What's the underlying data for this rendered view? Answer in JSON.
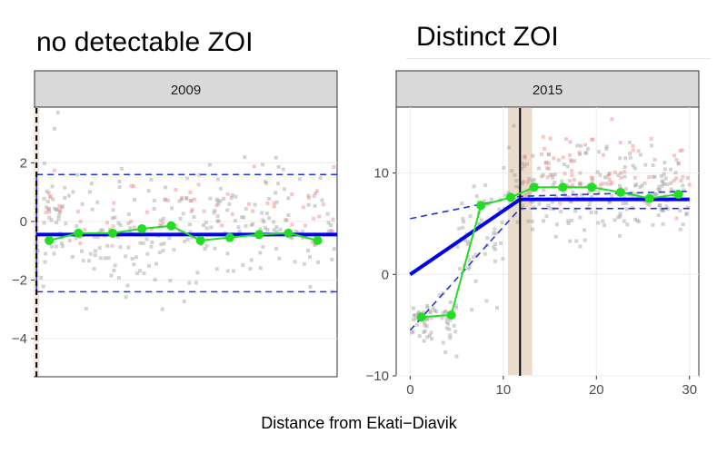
{
  "headings": {
    "left": "no detectable ZOI",
    "right": "Distinct ZOI"
  },
  "chart_data": [
    {
      "type": "scatter",
      "title": "2009",
      "xlabel": "",
      "ylabel": "",
      "xlim": [
        0,
        31
      ],
      "ylim": [
        -5.3,
        3.9
      ],
      "yticks": [
        2,
        0,
        -2,
        -4
      ],
      "xticks": [],
      "breakpoint_x": 0.2,
      "fit_line": {
        "x": [
          0.2,
          31
        ],
        "y": [
          -0.45,
          -0.45
        ]
      },
      "ci_upper": [
        [
          0.2,
          1.6
        ],
        [
          31,
          1.6
        ]
      ],
      "ci_lower": [
        [
          0.2,
          -2.4
        ],
        [
          31,
          -2.4
        ]
      ],
      "ci_edge": {
        "x": 0.2,
        "y": [
          -2.4,
          1.6
        ]
      },
      "binned_means": {
        "x": [
          1.5,
          4.5,
          8,
          11,
          14,
          17,
          20,
          23,
          26,
          29
        ],
        "y": [
          -0.65,
          -0.4,
          -0.4,
          -0.25,
          -0.15,
          -0.65,
          -0.55,
          -0.45,
          -0.4,
          -0.65
        ]
      },
      "scatter_grey": {
        "mean": -0.2,
        "sd": 1.1,
        "n": 260,
        "seed": 11
      },
      "scatter_red": {
        "mean": 0.5,
        "sd": 0.6,
        "n": 70,
        "seed": 23
      },
      "colors": {
        "fit": "#0000ee",
        "ci": "#2233dd",
        "means": "#22dd22",
        "grey": "#9e9e9e",
        "red": "#f08080",
        "break": "#000000"
      }
    },
    {
      "type": "scatter",
      "title": "2015",
      "xlabel": "Distance from Ekati−Diavik",
      "ylabel": "",
      "xlim": [
        -1.5,
        31
      ],
      "ylim": [
        -10,
        16.5
      ],
      "yticks": [
        10,
        0,
        -10
      ],
      "xticks": [
        0,
        10,
        20,
        30
      ],
      "breakpoint_x": 11.8,
      "breakpoint_band": [
        10.5,
        13.1
      ],
      "fit_line": {
        "x": [
          0,
          11.8,
          30
        ],
        "y": [
          0,
          7.4,
          7.4
        ]
      },
      "ci_upper": [
        [
          0,
          5.5
        ],
        [
          11.8,
          7.7
        ],
        [
          30,
          8.2
        ]
      ],
      "ci_lower": [
        [
          0,
          -5.5
        ],
        [
          11.8,
          6.5
        ],
        [
          30,
          6.5
        ]
      ],
      "binned_means": {
        "x": [
          1.2,
          4.4,
          7.6,
          10.8,
          13.3,
          16.4,
          19.5,
          22.6,
          25.7,
          28.8
        ],
        "y": [
          -4.2,
          -4,
          6.8,
          7.6,
          8.6,
          8.6,
          8.6,
          8.1,
          7.5,
          7.9
        ]
      },
      "scatter_grey": {
        "segments": [
          [
            0,
            5,
            -5,
            1.3,
            60
          ],
          [
            5,
            10,
            4,
            3,
            50
          ],
          [
            10,
            30,
            8,
            2.2,
            220
          ]
        ],
        "seed": 37
      },
      "scatter_red": {
        "segments": [
          [
            12,
            30,
            10,
            1.8,
            80
          ]
        ],
        "seed": 51
      },
      "colors": {
        "fit": "#0000ee",
        "ci": "#2233dd",
        "means": "#22dd22",
        "grey": "#9e9e9e",
        "red": "#f08080",
        "break": "#000000",
        "band": "#e8d6c2"
      }
    }
  ]
}
